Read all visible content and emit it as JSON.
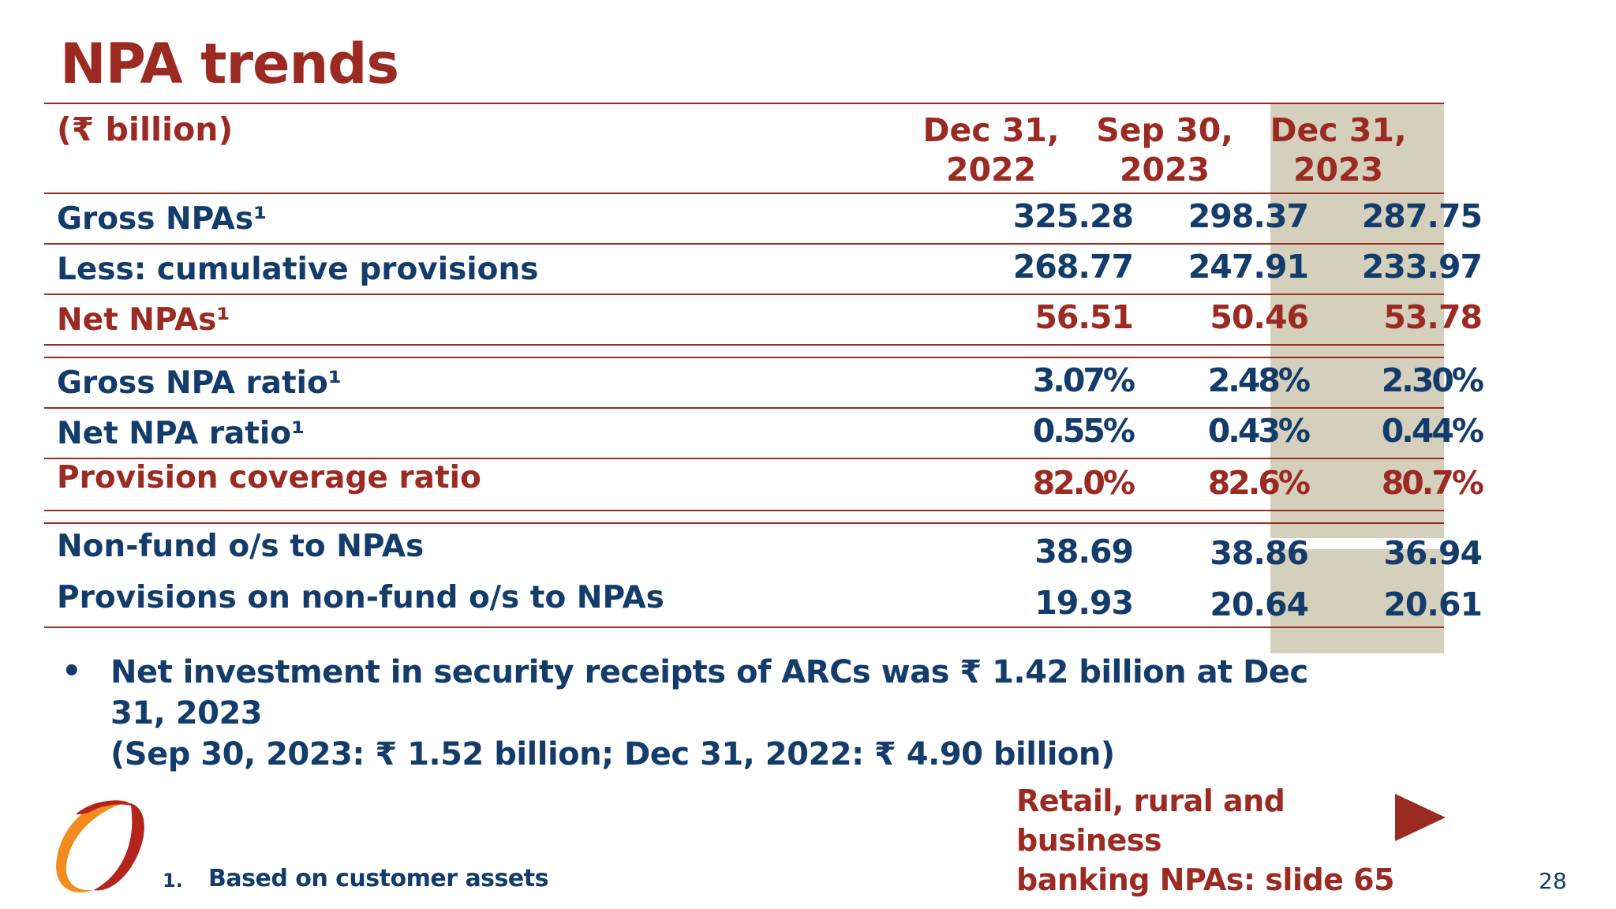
{
  "title": "NPA trends",
  "unit_label": "(₹ billion)",
  "columns": [
    {
      "line1": "Dec 31,",
      "line2": "2022"
    },
    {
      "line1": "Sep 30,",
      "line2": "2023"
    },
    {
      "line1": "Dec 31,",
      "line2": "2023"
    }
  ],
  "rows": [
    {
      "label": "Gross NPAs¹",
      "values": [
        "325.28",
        "298.37",
        "287.75"
      ]
    },
    {
      "label": "Less: cumulative provisions",
      "values": [
        "268.77",
        "247.91",
        "233.97"
      ]
    },
    {
      "label": "Net NPAs¹",
      "values": [
        "56.51",
        "50.46",
        "53.78"
      ]
    },
    {
      "label": "Gross NPA ratio¹",
      "values": [
        "3.07%",
        "2.48%",
        "2.30%"
      ]
    },
    {
      "label": "Net NPA ratio¹",
      "values": [
        "0.55%",
        "0.43%",
        "0.44%"
      ]
    },
    {
      "label": "Provision coverage ratio",
      "values": [
        "82.0%",
        "82.6%",
        "80.7%"
      ]
    },
    {
      "label": "Non-fund o/s to NPAs",
      "values": [
        "38.69",
        "38.86",
        "36.94"
      ]
    },
    {
      "label": "Provisions on non-fund o/s to NPAs",
      "values": [
        "19.93",
        "20.64",
        "20.61"
      ]
    }
  ],
  "bullet": "•",
  "note_line1": "Net investment in security receipts of ARCs was ₹ 1.42 billion at Dec 31, 2023",
  "note_line2": "(Sep 30, 2023: ₹ 1.52 billion; Dec 31, 2022: ₹ 4.90 billion)",
  "footnote_number": "1.",
  "footnote_text": "Based on customer assets",
  "crossref_line1": "Retail, rural and business",
  "crossref_line2": "banking NPAs: slide 65",
  "page_number": "28",
  "colors": {
    "brand_red": "#9b2a22",
    "navy": "#133c6b",
    "shade": "#d4d0bc",
    "logo_orange": "#f28c1e"
  },
  "icons": {
    "logo": "bank-logo-icon",
    "arrow": "play-arrow-icon"
  }
}
